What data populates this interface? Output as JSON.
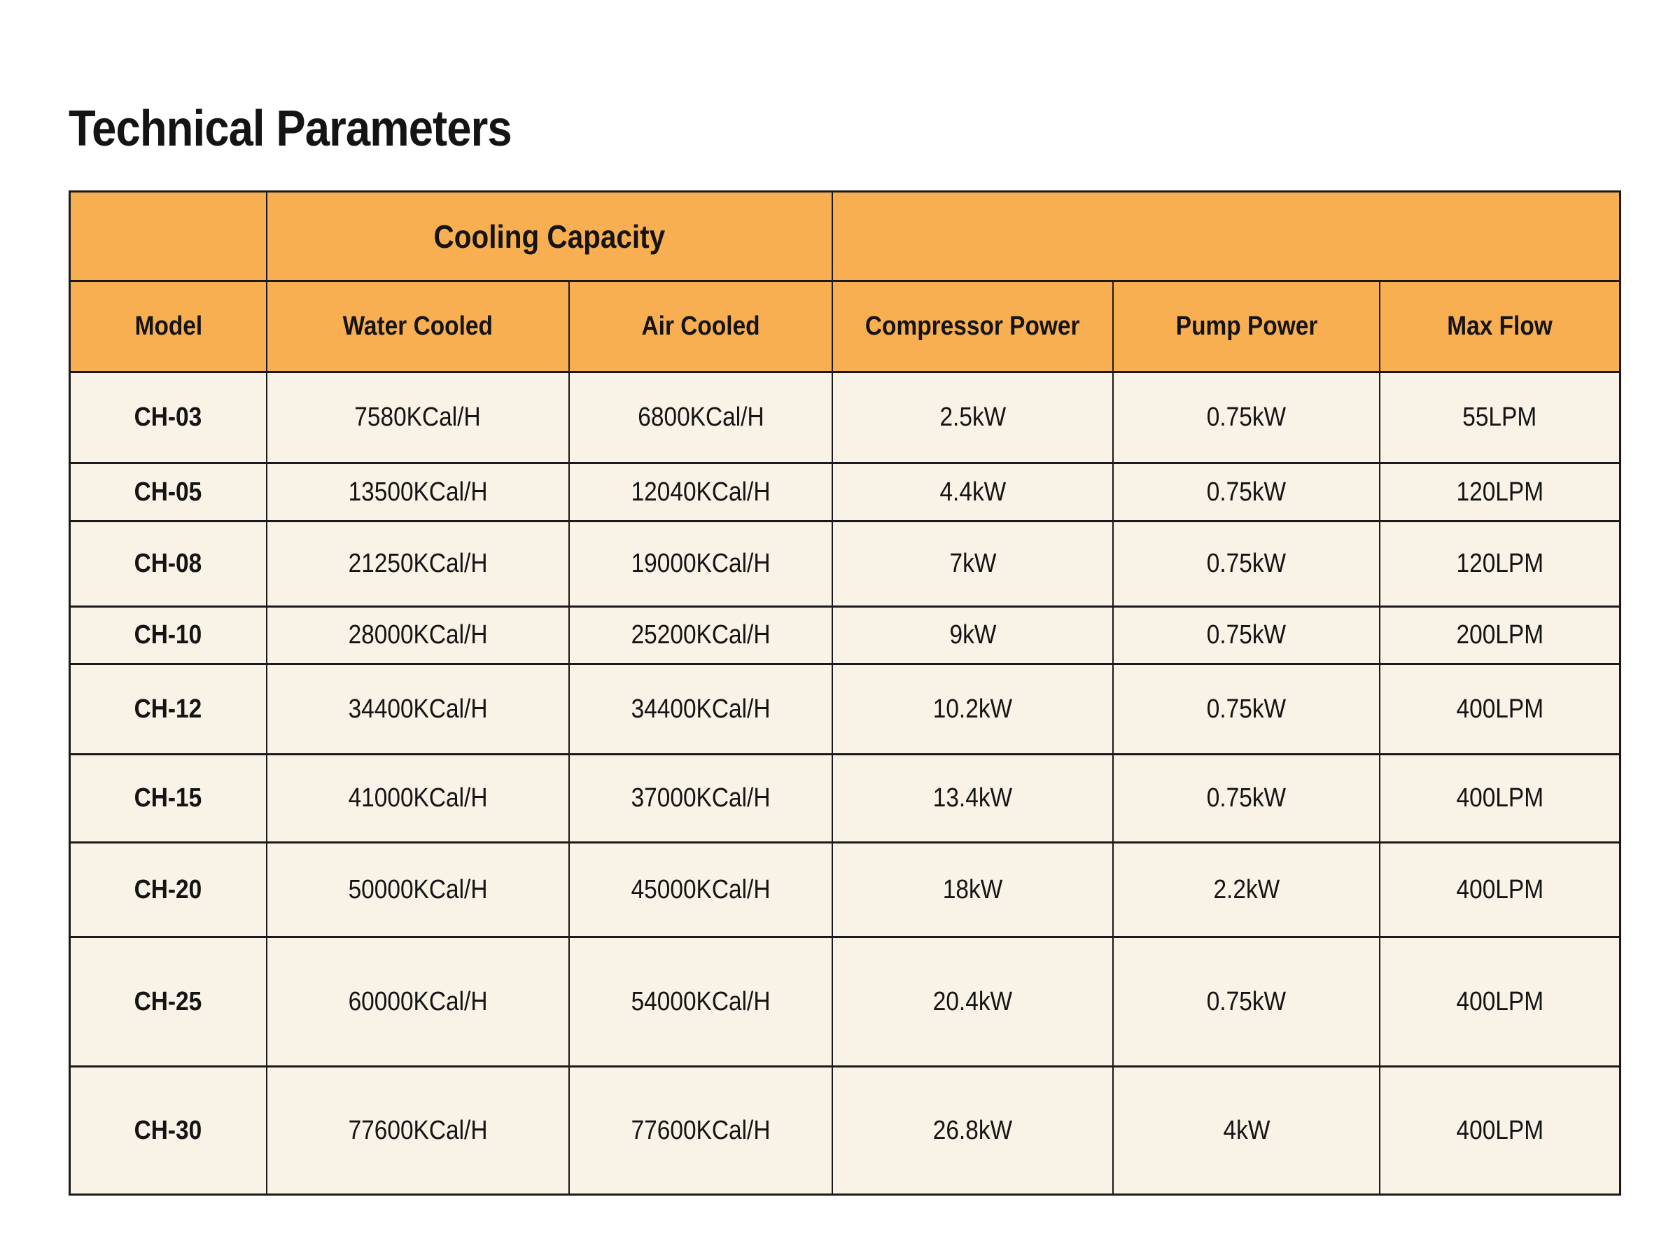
{
  "page": {
    "title": "Technical Parameters"
  },
  "colors": {
    "header_bg": "#F8AF52",
    "row_bg": "#F9F2E6",
    "border": "#1A1A1A",
    "text": "#141414",
    "page_bg": "#FFFFFF"
  },
  "table": {
    "group_header": {
      "cooling_capacity": "Cooling Capacity"
    },
    "columns": [
      {
        "key": "model",
        "label": "Model"
      },
      {
        "key": "water_cooled",
        "label": "Water Cooled"
      },
      {
        "key": "air_cooled",
        "label": "Air Cooled"
      },
      {
        "key": "compressor_power",
        "label": "Compressor Power"
      },
      {
        "key": "pump_power",
        "label": "Pump Power"
      },
      {
        "key": "max_flow",
        "label": "Max Flow"
      }
    ],
    "rows": [
      {
        "model": "CH-03",
        "water_cooled": "7580KCal/H",
        "air_cooled": "6800KCal/H",
        "compressor_power": "2.5kW",
        "pump_power": "0.75kW",
        "max_flow": "55LPM"
      },
      {
        "model": "CH-05",
        "water_cooled": "13500KCal/H",
        "air_cooled": "12040KCal/H",
        "compressor_power": "4.4kW",
        "pump_power": "0.75kW",
        "max_flow": "120LPM"
      },
      {
        "model": "CH-08",
        "water_cooled": "21250KCal/H",
        "air_cooled": "19000KCal/H",
        "compressor_power": "7kW",
        "pump_power": "0.75kW",
        "max_flow": "120LPM"
      },
      {
        "model": "CH-10",
        "water_cooled": "28000KCal/H",
        "air_cooled": "25200KCal/H",
        "compressor_power": "9kW",
        "pump_power": "0.75kW",
        "max_flow": "200LPM"
      },
      {
        "model": "CH-12",
        "water_cooled": "34400KCal/H",
        "air_cooled": "34400KCal/H",
        "compressor_power": "10.2kW",
        "pump_power": "0.75kW",
        "max_flow": "400LPM"
      },
      {
        "model": "CH-15",
        "water_cooled": "41000KCal/H",
        "air_cooled": "37000KCal/H",
        "compressor_power": "13.4kW",
        "pump_power": "0.75kW",
        "max_flow": "400LPM"
      },
      {
        "model": "CH-20",
        "water_cooled": "50000KCal/H",
        "air_cooled": "45000KCal/H",
        "compressor_power": "18kW",
        "pump_power": "2.2kW",
        "max_flow": "400LPM"
      },
      {
        "model": "CH-25",
        "water_cooled": "60000KCal/H",
        "air_cooled": "54000KCal/H",
        "compressor_power": "20.4kW",
        "pump_power": "0.75kW",
        "max_flow": "400LPM"
      },
      {
        "model": "CH-30",
        "water_cooled": "77600KCal/H",
        "air_cooled": "77600KCal/H",
        "compressor_power": "26.8kW",
        "pump_power": "4kW",
        "max_flow": "400LPM"
      }
    ]
  }
}
